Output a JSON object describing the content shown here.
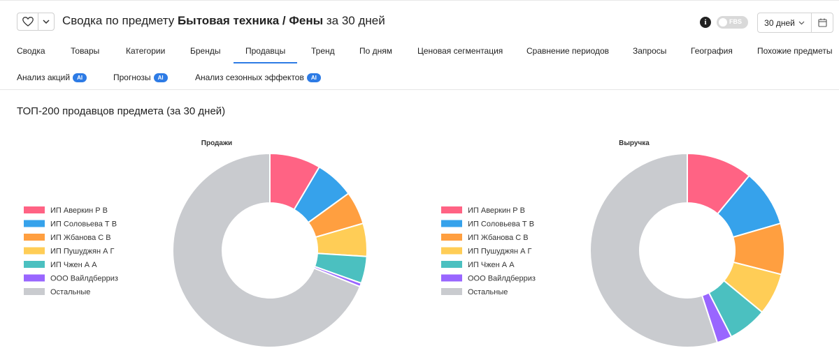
{
  "header": {
    "title_prefix": "Сводка по предмету",
    "subject": "Бытовая техника / Фены",
    "period_suffix": "за 30 дней",
    "fbs_label": "FBS",
    "period_select": "30 дней",
    "info_glyph": "i"
  },
  "tabs_row1": [
    "Сводка",
    "Товары",
    "Категории",
    "Бренды",
    "Продавцы",
    "Тренд",
    "По дням",
    "Ценовая сегментация",
    "Сравнение периодов",
    "Запросы",
    "География",
    "Похожие предметы"
  ],
  "tabs_row2": [
    {
      "label": "Анализ акций",
      "badge": "AI"
    },
    {
      "label": "Прогнозы",
      "badge": "AI"
    },
    {
      "label": "Анализ сезонных эффектов",
      "badge": "AI"
    }
  ],
  "active_tab": "Продавцы",
  "section_title": "ТОП-200 продавцов предмета (за 30 дней)",
  "chart_data": [
    {
      "type": "pie",
      "title": "Продажи",
      "donut": true,
      "legend_position": "left",
      "categories": [
        "ИП Аверкин Р В",
        "ИП Соловьева Т В",
        "ИП Жбанова С В",
        "ИП Пушуджян А Г",
        "ИП Чжен А А",
        "ООО Вайлдберриз",
        "Остальные"
      ],
      "colors": [
        "#ff6384",
        "#36a2eb",
        "#ff9f40",
        "#ffcd56",
        "#4bc0c0",
        "#9966ff",
        "#c9cbcf"
      ],
      "values": [
        8.5,
        6.5,
        5.5,
        5.5,
        4.5,
        0.6,
        68.9
      ]
    },
    {
      "type": "pie",
      "title": "Выручка",
      "donut": true,
      "legend_position": "left",
      "categories": [
        "ИП Аверкин Р В",
        "ИП Соловьева Т В",
        "ИП Жбанова С В",
        "ИП Пушуджян А Г",
        "ИП Чжен А А",
        "ООО Вайлдберриз",
        "Остальные"
      ],
      "colors": [
        "#ff6384",
        "#36a2eb",
        "#ff9f40",
        "#ffcd56",
        "#4bc0c0",
        "#9966ff",
        "#c9cbcf"
      ],
      "values": [
        11,
        9.5,
        8.5,
        7,
        6.5,
        2.5,
        55
      ]
    }
  ]
}
